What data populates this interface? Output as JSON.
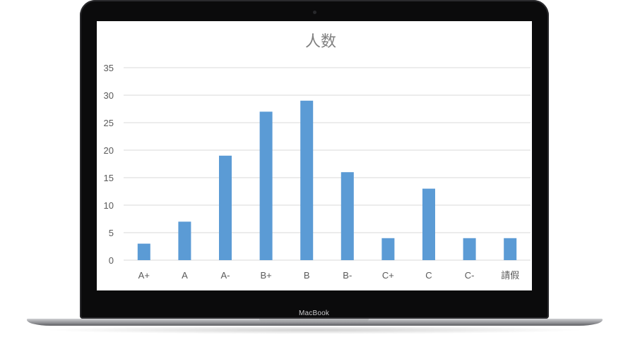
{
  "device": {
    "brand_label": "MacBook"
  },
  "chart_data": {
    "type": "bar",
    "title": "人数",
    "categories": [
      "A+",
      "A",
      "A-",
      "B+",
      "B",
      "B-",
      "C+",
      "C",
      "C-",
      "請假"
    ],
    "values": [
      3,
      7,
      19,
      27,
      29,
      16,
      4,
      13,
      4,
      4
    ],
    "ylim": [
      0,
      35
    ],
    "yticks": [
      0,
      5,
      10,
      15,
      20,
      25,
      30,
      35
    ],
    "grid": true,
    "legend": "none",
    "colors": {
      "bar": "#5b9bd5",
      "grid": "#d9d9d9",
      "axis_text": "#595959",
      "title": "#7f7f7f"
    }
  }
}
